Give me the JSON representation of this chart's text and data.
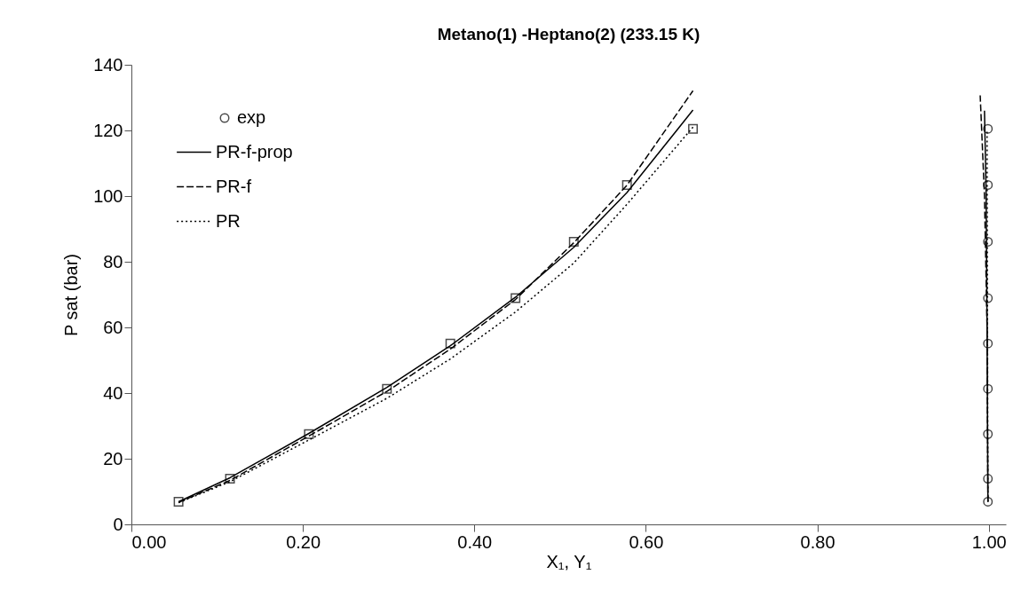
{
  "chart_data": {
    "type": "line",
    "title": "Metano(1) -Heptano(2) (233.15 K)",
    "xlabel": "X₁, Y₁",
    "ylabel": "P sat (bar)",
    "xlim": [
      0,
      1.02
    ],
    "xticks": [
      {
        "value": 0,
        "label": "0.00"
      },
      {
        "value": 0.2,
        "label": "0.20"
      },
      {
        "value": 0.4,
        "label": "0.40"
      },
      {
        "value": 0.6,
        "label": "0.60"
      },
      {
        "value": 0.8,
        "label": "0.80"
      },
      {
        "value": 1,
        "label": "1.00"
      }
    ],
    "ylim": [
      0,
      140
    ],
    "yticks": [
      0,
      20,
      40,
      60,
      80,
      100,
      120,
      140
    ],
    "grid": false,
    "legend": "top left",
    "series": [
      {
        "type": "scatter",
        "name": "exp",
        "marker": "circle",
        "color": "#000000",
        "x": [
          0.999,
          0.999,
          0.999,
          0.999,
          0.999,
          0.999,
          0.999,
          0.999,
          0.999
        ],
        "values": [
          6.9,
          13.9,
          27.5,
          41.3,
          55.1,
          68.9,
          86.1,
          103.4,
          120.5
        ]
      },
      {
        "type": "scatter",
        "marker": "square",
        "color": "#000000",
        "x": [
          0.055,
          0.115,
          0.207,
          0.298,
          0.372,
          0.448,
          0.516,
          0.578,
          0.655
        ],
        "values": [
          6.9,
          13.9,
          27.5,
          41.3,
          55.1,
          68.9,
          86.1,
          103.4,
          120.5
        ]
      },
      {
        "name": "PR-f-prop",
        "line_style": "solid",
        "color": "#000000",
        "x": [
          0.055,
          0.115,
          0.207,
          0.298,
          0.372,
          0.448,
          0.516,
          0.578,
          0.655
        ],
        "values": [
          6.9,
          14.2,
          27.7,
          41.7,
          54.4,
          69.2,
          84.4,
          101.1,
          126.2
        ]
      },
      {
        "name": "PR-f",
        "line_style": "dashed",
        "color": "#000000",
        "x": [
          0.055,
          0.115,
          0.207,
          0.298,
          0.372,
          0.448,
          0.516,
          0.578,
          0.655
        ],
        "values": [
          6.7,
          13.4,
          26.9,
          40.5,
          53.4,
          68.5,
          85.8,
          103.3,
          132.1
        ]
      },
      {
        "name": "PR",
        "line_style": "dotted",
        "color": "#000000",
        "x": [
          0.055,
          0.115,
          0.207,
          0.298,
          0.372,
          0.448,
          0.516,
          0.578,
          0.655
        ],
        "values": [
          6.6,
          13.0,
          25.7,
          38.4,
          50.4,
          64.7,
          79.6,
          97.5,
          121
        ]
      },
      {
        "line_style": "solid",
        "color": "#000000",
        "x": [
          0.999,
          0.998,
          0.997,
          0.995
        ],
        "values": [
          6.9,
          60,
          100,
          126
        ]
      },
      {
        "line_style": "dashed",
        "color": "#000000",
        "x": [
          0.999,
          0.998,
          0.995,
          0.99
        ],
        "values": [
          6.9,
          60,
          100,
          130.7
        ]
      },
      {
        "line_style": "dotted",
        "color": "#000000",
        "x": [
          0.999,
          0.998
        ],
        "values": [
          6.9,
          120
        ]
      }
    ]
  }
}
